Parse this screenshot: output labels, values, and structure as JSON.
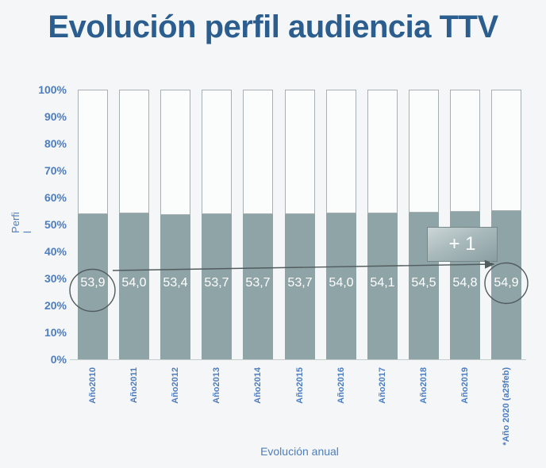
{
  "title": "Evolución perfil audiencia TTV",
  "colors": {
    "background": "#f5f6f7",
    "title_blue": "#2b5e8e",
    "axis_blue": "#4d7dbf",
    "bar_fill": "#8fa4a7",
    "bar_empty": "#fbfcfc",
    "bar_border": "#a9b0b3",
    "value_text": "#ffffff",
    "annotation_gray": "#515c5e"
  },
  "chart_data": {
    "type": "bar",
    "variant": "100%-stacked-column",
    "title": "Evolución perfil audiencia TTV",
    "categories": [
      "Año2010",
      "Año2011",
      "Año2012",
      "Año2013",
      "Año2014",
      "Año2015",
      "Año2016",
      "Año2017",
      "Año2018",
      "Año2019",
      "*Año 2020 (a29feb)"
    ],
    "values": [
      53.9,
      54.0,
      53.4,
      53.7,
      53.7,
      53.7,
      54.0,
      54.1,
      54.5,
      54.8,
      54.9
    ],
    "value_labels": [
      "53,9",
      "54,0",
      "53,4",
      "53,7",
      "53,7",
      "53,7",
      "54,0",
      "54,1",
      "54,5",
      "54,8",
      "54,9"
    ],
    "stacked_to": 100,
    "xlabel": "Evolución anual",
    "ylabel": "Perfil",
    "ylim": [
      0,
      100
    ],
    "y_ticks": [
      "100%",
      "90%",
      "80%",
      "70%",
      "60%",
      "50%",
      "40%",
      "30%",
      "20%",
      "10%",
      "0%"
    ],
    "grid": false,
    "legend": false,
    "annotations": {
      "delta_label": "+ 1",
      "arrow": "from first bar value to last bar value",
      "circled_values": [
        "53,9",
        "54,9"
      ]
    }
  }
}
